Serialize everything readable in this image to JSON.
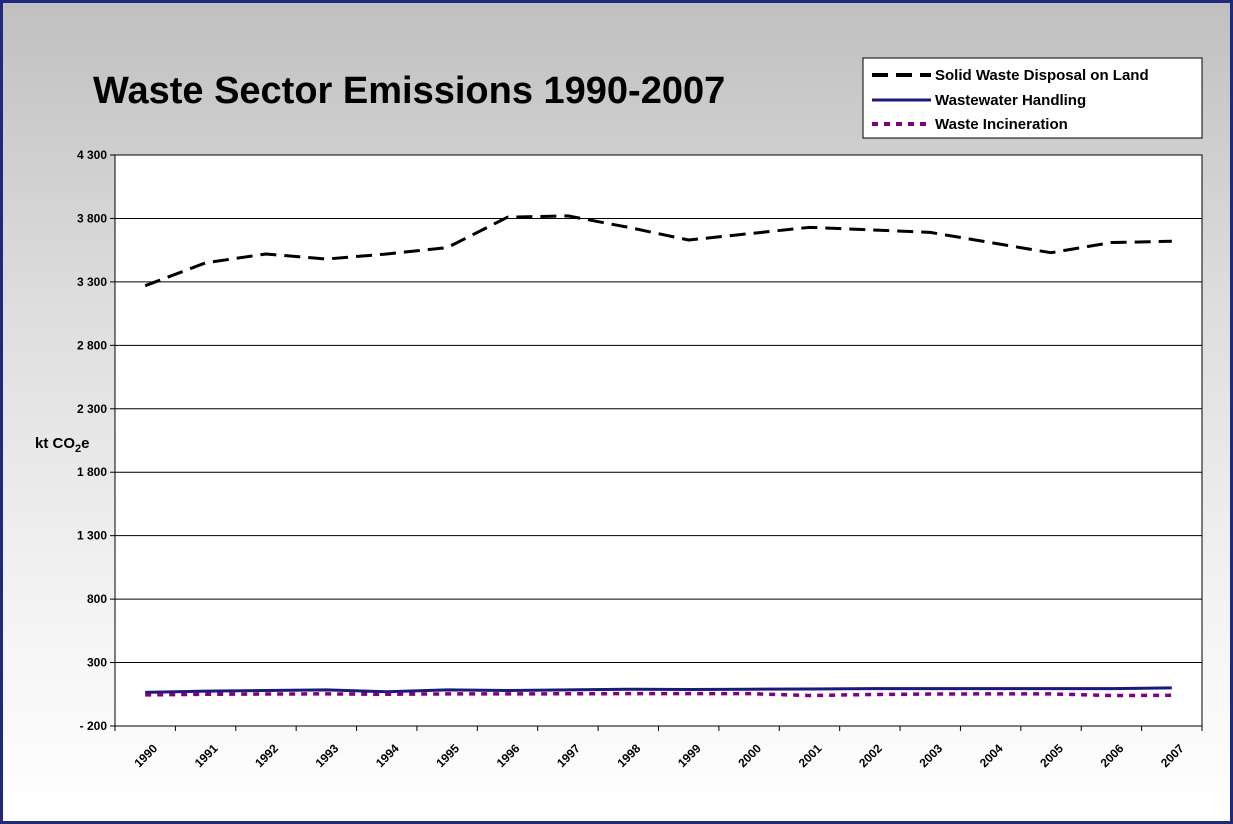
{
  "chart_data": {
    "type": "line",
    "title": "Waste Sector Emissions 1990-2007",
    "ylabel_main": "kt CO",
    "ylabel_sub": "2",
    "ylabel_tail": "e",
    "xlabel": "",
    "ylim": [
      -200,
      4300
    ],
    "yticks": [
      -200,
      300,
      800,
      1300,
      1800,
      2300,
      2800,
      3300,
      3800,
      4300
    ],
    "ytick_labels": [
      "- 200",
      "300",
      "800",
      "1 300",
      "1 800",
      "2 300",
      "2 800",
      "3 300",
      "3 800",
      "4 300"
    ],
    "categories": [
      "1990",
      "1991",
      "1992",
      "1993",
      "1994",
      "1995",
      "1996",
      "1997",
      "1998",
      "1999",
      "2000",
      "2001",
      "2002",
      "2003",
      "2004",
      "2005",
      "2006",
      "2007"
    ],
    "grid": true,
    "legend_position": "top-right",
    "series": [
      {
        "name": "Solid Waste Disposal on Land",
        "color": "#000000",
        "style": "dashed",
        "values": [
          3270,
          3450,
          3520,
          3480,
          3520,
          3570,
          3810,
          3820,
          3730,
          3630,
          3680,
          3730,
          3710,
          3690,
          3610,
          3530,
          3610,
          3620
        ]
      },
      {
        "name": "Wastewater Handling",
        "color": "#1a1a7a",
        "style": "solid",
        "values": [
          65,
          75,
          80,
          85,
          70,
          85,
          80,
          85,
          90,
          88,
          90,
          92,
          95,
          95,
          95,
          95,
          95,
          100
        ]
      },
      {
        "name": "Waste Incineration",
        "color": "#800080",
        "style": "dotted",
        "values": [
          45,
          50,
          52,
          53,
          50,
          53,
          53,
          54,
          55,
          55,
          55,
          40,
          48,
          52,
          53,
          53,
          40,
          42
        ]
      }
    ]
  }
}
